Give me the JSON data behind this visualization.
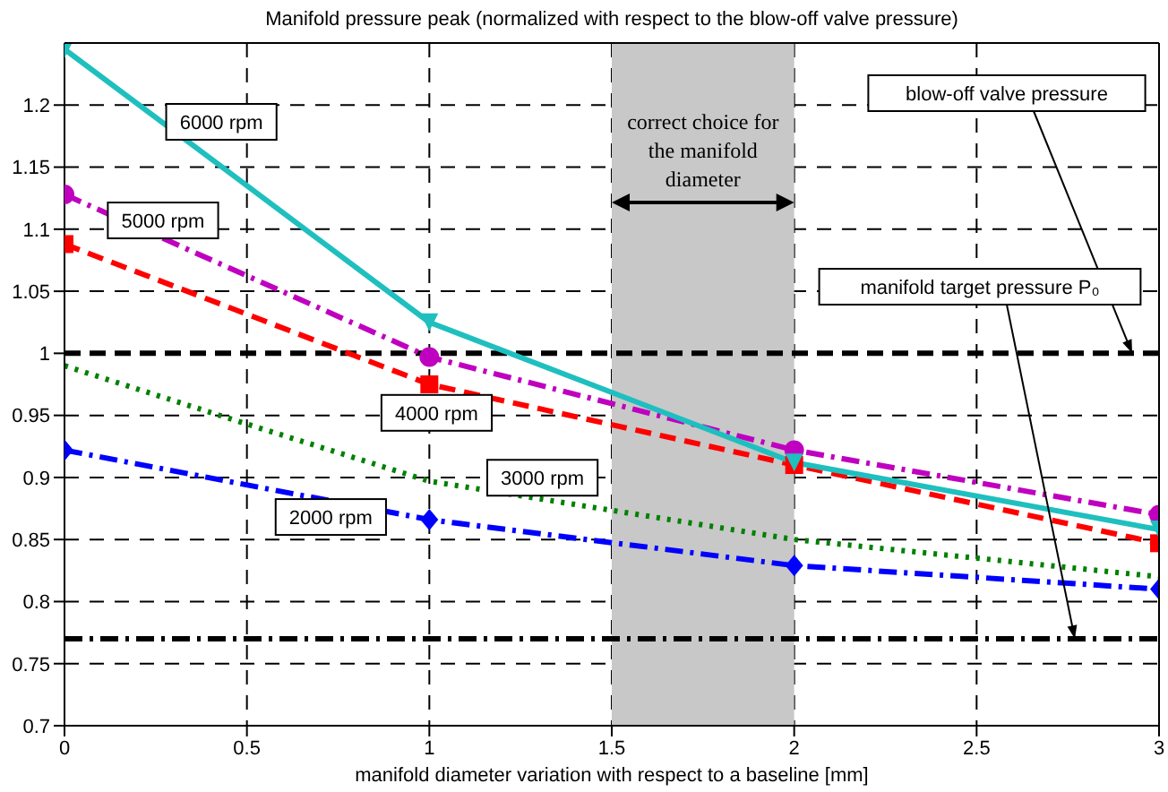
{
  "chart_data": {
    "type": "line",
    "title": "Manifold pressure peak (normalized with respect to the blow-off valve pressure)",
    "xlabel": "manifold diameter variation with respect to a baseline [mm]",
    "xlim": [
      0,
      3
    ],
    "xticks": [
      0,
      0.5,
      1,
      1.5,
      2,
      2.5,
      3
    ],
    "ylim": [
      0.7,
      1.25
    ],
    "yticks": [
      0.7,
      0.75,
      0.8,
      0.85,
      0.9,
      0.95,
      1,
      1.05,
      1.1,
      1.15,
      1.2
    ],
    "grid": true,
    "series": [
      {
        "name": "6000 rpm",
        "color": "#1fbfbf",
        "x": [
          0,
          1,
          2,
          3
        ],
        "values": [
          1.245,
          1.025,
          0.912,
          0.858
        ],
        "marker": "triangle",
        "line_style": "solid"
      },
      {
        "name": "5000 rpm",
        "color": "#c000c0",
        "x": [
          0,
          1,
          2,
          3
        ],
        "values": [
          1.128,
          0.997,
          0.922,
          0.87
        ],
        "marker": "circle",
        "line_style": "dashdot"
      },
      {
        "name": "4000 rpm",
        "color": "#ff0000",
        "x": [
          0,
          1,
          2,
          3
        ],
        "values": [
          1.088,
          0.975,
          0.91,
          0.847
        ],
        "marker": "square",
        "line_style": "dashed"
      },
      {
        "name": "3000 rpm",
        "color": "#008000",
        "x": [
          0,
          0.5,
          1,
          2,
          3
        ],
        "values": [
          0.99,
          0.943,
          0.897,
          0.85,
          0.82
        ],
        "marker": "none",
        "line_style": "dotted"
      },
      {
        "name": "2000 rpm",
        "color": "#0000ff",
        "x": [
          0,
          1,
          2,
          3
        ],
        "values": [
          0.922,
          0.866,
          0.829,
          0.81
        ],
        "marker": "diamond",
        "line_style": "dashdot"
      }
    ],
    "ref_lines": [
      {
        "axis": "y",
        "value": 1,
        "label": "blow-off valve pressure",
        "color": "#000000",
        "line_style": "dashed"
      },
      {
        "axis": "y",
        "value": 0.77,
        "label": "manifold target pressure P₀",
        "color": "#000000",
        "line_style": "dashdot"
      }
    ],
    "bands": [
      {
        "axis": "x",
        "from": 1.5,
        "to": 2,
        "label": "correct choice for the manifold diameter",
        "color": "#c8c8c8"
      }
    ]
  }
}
